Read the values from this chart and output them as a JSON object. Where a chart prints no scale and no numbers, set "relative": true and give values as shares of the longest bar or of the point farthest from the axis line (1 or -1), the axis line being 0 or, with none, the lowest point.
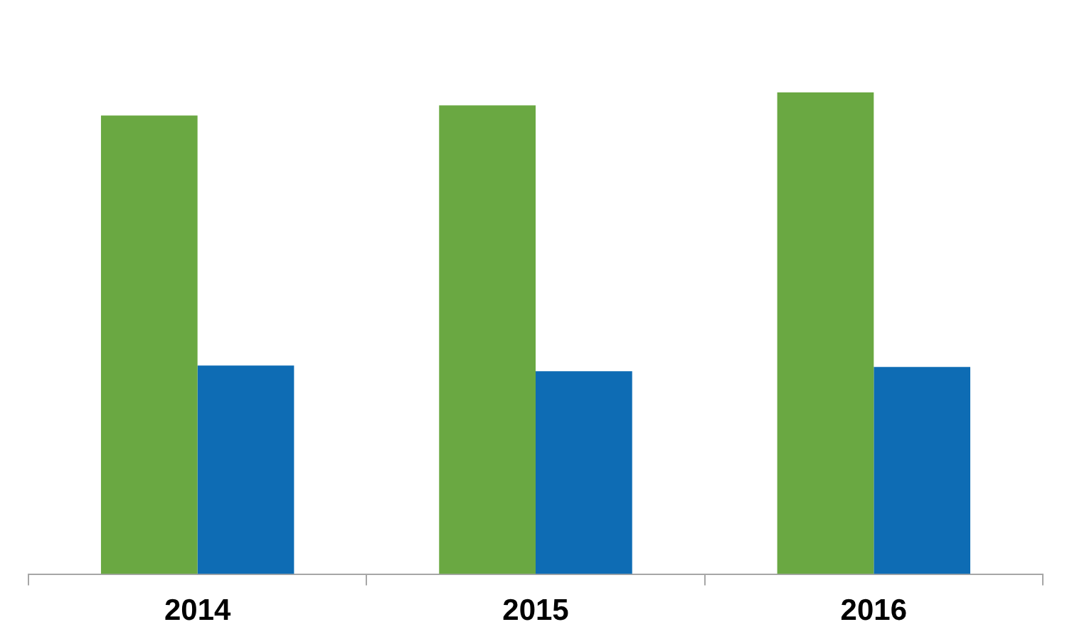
{
  "chart_data": {
    "type": "bar",
    "relative": true,
    "categories": [
      "2014",
      "2015",
      "2016"
    ],
    "series": [
      {
        "color": "#6aa842",
        "values": [
          0.952,
          0.973,
          1
        ]
      },
      {
        "color": "#0e6cb4",
        "values": [
          0.433,
          0.421,
          0.43
        ]
      }
    ]
  }
}
